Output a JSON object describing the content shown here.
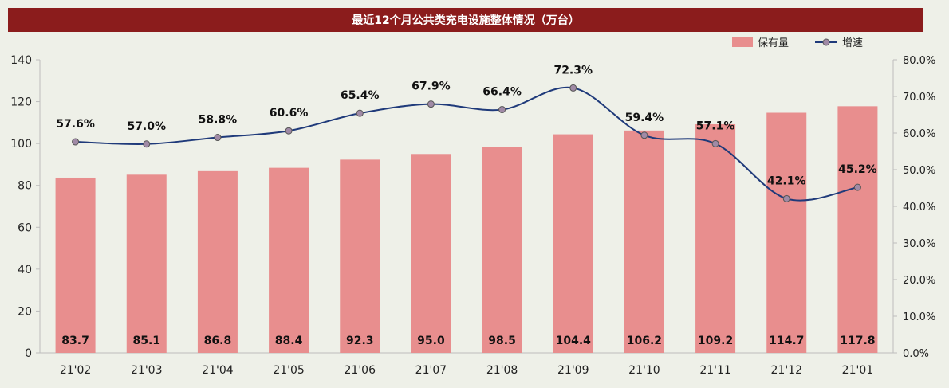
{
  "chart_data": {
    "type": "bar+line",
    "title": "最近12个月公共类充电设施整体情况（万台）",
    "categories": [
      "21'02",
      "21'03",
      "21'04",
      "21'05",
      "21'06",
      "21'07",
      "21'08",
      "21'09",
      "21'10",
      "21'11",
      "21'12",
      "21'01"
    ],
    "series": [
      {
        "name": "保有量",
        "type": "bar",
        "axis": "left",
        "color": "#e88e8e",
        "values": [
          83.7,
          85.1,
          86.8,
          88.4,
          92.3,
          95.0,
          98.5,
          104.4,
          106.2,
          109.2,
          114.7,
          117.8
        ],
        "labels": [
          "83.7",
          "85.1",
          "86.8",
          "88.4",
          "92.3",
          "95.0",
          "98.5",
          "104.4",
          "106.2",
          "109.2",
          "114.7",
          "117.8"
        ]
      },
      {
        "name": "增速",
        "type": "line",
        "axis": "right",
        "color": "#1f3a7a",
        "marker_color": "#a08aa6",
        "values": [
          57.6,
          57.0,
          58.8,
          60.6,
          65.4,
          67.9,
          66.4,
          72.3,
          59.4,
          57.1,
          42.1,
          45.2
        ],
        "labels": [
          "57.6%",
          "57.0%",
          "58.8%",
          "60.6%",
          "65.4%",
          "67.9%",
          "66.4%",
          "72.3%",
          "59.4%",
          "57.1%",
          "42.1%",
          "45.2%"
        ]
      }
    ],
    "y_left": {
      "min": 0,
      "max": 140,
      "ticks": [
        "0",
        "20",
        "40",
        "60",
        "80",
        "100",
        "120",
        "140"
      ]
    },
    "y_right": {
      "min": 0,
      "max": 80,
      "ticks": [
        "0.0%",
        "10.0%",
        "20.0%",
        "30.0%",
        "40.0%",
        "50.0%",
        "60.0%",
        "70.0%",
        "80.0%"
      ]
    },
    "legend_position": "top-right",
    "grid": false
  },
  "colors": {
    "title_bg": "#8b1c1c",
    "background": "#eef0e8"
  }
}
